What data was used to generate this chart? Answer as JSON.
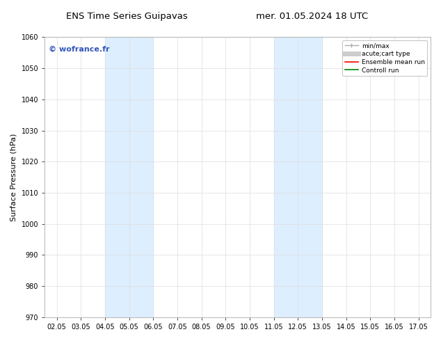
{
  "title_left": "ENS Time Series Guipavas",
  "title_right": "mer. 01.05.2024 18 UTC",
  "ylabel": "Surface Pressure (hPa)",
  "ylim": [
    970,
    1060
  ],
  "yticks": [
    970,
    980,
    990,
    1000,
    1010,
    1020,
    1030,
    1040,
    1050,
    1060
  ],
  "x_tick_labels": [
    "02.05",
    "03.05",
    "04.05",
    "05.05",
    "06.05",
    "07.05",
    "08.05",
    "09.05",
    "10.05",
    "11.05",
    "12.05",
    "13.05",
    "14.05",
    "15.05",
    "16.05",
    "17.05"
  ],
  "x_tick_positions": [
    0,
    1,
    2,
    3,
    4,
    5,
    6,
    7,
    8,
    9,
    10,
    11,
    12,
    13,
    14,
    15
  ],
  "xlim": [
    -0.5,
    15.5
  ],
  "shaded_regions": [
    {
      "xmin": 2.0,
      "xmax": 4.0,
      "color": "#ddeeff"
    },
    {
      "xmin": 9.0,
      "xmax": 11.0,
      "color": "#ddeeff"
    }
  ],
  "watermark_text": "© wofrance.fr",
  "watermark_color": "#3355bb",
  "legend_entries": [
    {
      "label": "min/max",
      "color": "#aaaaaa",
      "lw": 1.0
    },
    {
      "label": "acute;cart type",
      "color": "#cccccc",
      "lw": 5
    },
    {
      "label": "Ensemble mean run",
      "color": "red",
      "lw": 1.2
    },
    {
      "label": "Controll run",
      "color": "green",
      "lw": 1.2
    }
  ],
  "background_color": "#ffffff",
  "grid_color": "#dddddd",
  "title_fontsize": 9.5,
  "label_fontsize": 8,
  "tick_fontsize": 7,
  "watermark_fontsize": 8
}
